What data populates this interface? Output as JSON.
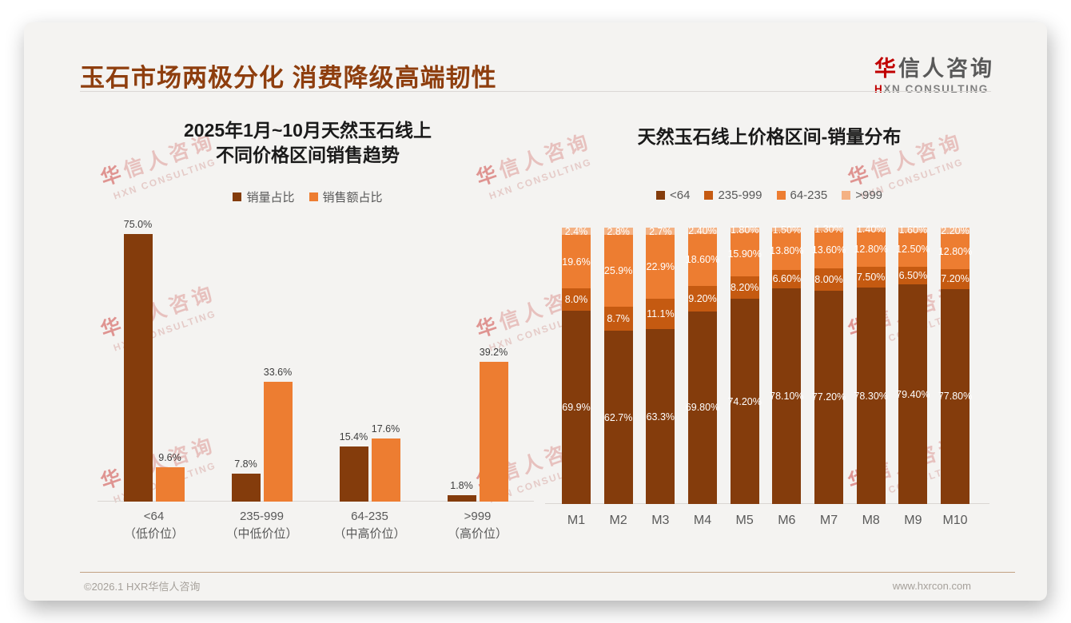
{
  "slide": {
    "title": "玉石市场两极分化 消费降级高端韧性",
    "logo": {
      "zh": "华信人咨询",
      "en": "HXN CONSULTING"
    },
    "watermark": {
      "line1": "华信人咨询",
      "line2": "HXN CONSULTING"
    },
    "footer": {
      "left": "©2026.1 HXR华信人咨询",
      "right": "www.hxrcon.com"
    }
  },
  "colors": {
    "title_accent": "#8E3E0E",
    "logo_red": "#C00000",
    "series_dark_brown": "#843C0C",
    "series_burnt_orange": "#C55A11",
    "series_orange": "#ED7D31",
    "series_peach": "#F4B183",
    "footer_rule": "#C2A183",
    "card_background": "#F4F3F1"
  },
  "chart_data": [
    {
      "type": "bar",
      "grouped": true,
      "title": "2025年1月~10月天然玉石线上不同价格区间销售趋势",
      "title_lines": [
        "2025年1月~10月天然玉石线上",
        "不同价格区间销售趋势"
      ],
      "categories": [
        "<64",
        "235-999",
        "64-235",
        ">999"
      ],
      "category_sublabels": [
        "（低价位）",
        "（中低价位）",
        "（中高价位）",
        "（高价位）"
      ],
      "series": [
        {
          "name": "销量占比",
          "color": "#843C0C",
          "values": [
            75.0,
            7.8,
            15.4,
            1.8
          ],
          "labels": [
            "75.0%",
            "7.8%",
            "15.4%",
            "1.8%"
          ]
        },
        {
          "name": "销售额占比",
          "color": "#ED7D31",
          "values": [
            9.6,
            33.6,
            17.6,
            39.2
          ],
          "labels": [
            "9.6%",
            "33.6%",
            "17.6%",
            "39.2%"
          ]
        }
      ],
      "xlabel": "",
      "ylabel": "",
      "ylim": [
        0,
        80
      ],
      "grid": false,
      "legend_position": "top"
    },
    {
      "type": "bar",
      "stacked": true,
      "title": "天然玉石线上价格区间-销量分布",
      "categories": [
        "M1",
        "M2",
        "M3",
        "M4",
        "M5",
        "M6",
        "M7",
        "M8",
        "M9",
        "M10"
      ],
      "stack_order_bottom_to_top": [
        "<64",
        "235-999",
        "64-235",
        ">999"
      ],
      "series": [
        {
          "name": "<64",
          "color": "#843C0C",
          "values": [
            69.9,
            62.7,
            63.3,
            69.8,
            74.2,
            78.1,
            77.2,
            78.3,
            79.4,
            77.8
          ],
          "labels": [
            "69.9%",
            "62.7%",
            "63.3%",
            "69.80%",
            "74.20%",
            "78.10%",
            "77.20%",
            "78.30%",
            "79.40%",
            "77.80%"
          ]
        },
        {
          "name": "235-999",
          "color": "#C55A11",
          "values": [
            8.0,
            8.7,
            11.1,
            9.2,
            8.2,
            6.6,
            8.0,
            7.5,
            6.5,
            7.2
          ],
          "labels": [
            "8.0%",
            "8.7%",
            "11.1%",
            "9.20%",
            "8.20%",
            "6.60%",
            "8.00%",
            "7.50%",
            "6.50%",
            "7.20%"
          ]
        },
        {
          "name": "64-235",
          "color": "#ED7D31",
          "values": [
            19.6,
            25.9,
            22.9,
            18.6,
            15.9,
            13.8,
            13.6,
            12.8,
            12.5,
            12.8
          ],
          "labels": [
            "19.6%",
            "25.9%",
            "22.9%",
            "18.60%",
            "15.90%",
            "13.80%",
            "13.60%",
            "12.80%",
            "12.50%",
            "12.80%"
          ]
        },
        {
          "name": ">999",
          "color": "#F4B183",
          "values": [
            2.4,
            2.8,
            2.7,
            2.4,
            1.8,
            1.5,
            1.3,
            1.4,
            1.6,
            2.2
          ],
          "labels": [
            "2.4%",
            "2.8%",
            "2.7%",
            "2.40%",
            "1.80%",
            "1.50%",
            "1.30%",
            "1.40%",
            "1.60%",
            "2.20%"
          ]
        }
      ],
      "xlabel": "",
      "ylabel": "",
      "ylim": [
        0,
        100
      ],
      "grid": false,
      "legend_position": "top"
    }
  ]
}
